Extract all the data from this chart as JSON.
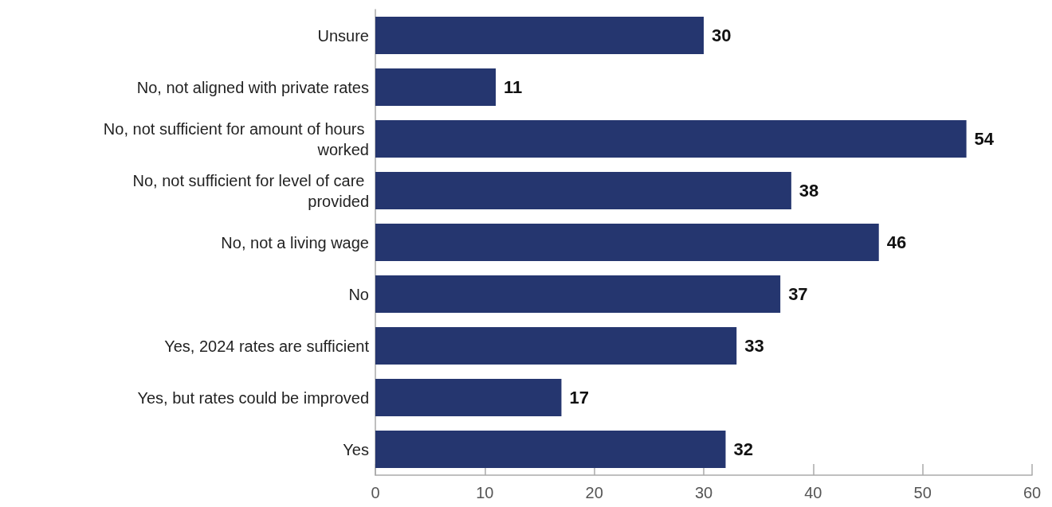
{
  "chart_data": {
    "type": "bar",
    "orientation": "horizontal",
    "categories": [
      "Unsure",
      "No, not aligned with private rates",
      "No, not sufficient for amount of hours worked",
      "No, not sufficient for level of care provided",
      "No, not a living wage",
      "No",
      "Yes, 2024 rates are sufficient",
      "Yes, but rates could be improved",
      "Yes"
    ],
    "values": [
      30,
      11,
      54,
      38,
      46,
      37,
      33,
      17,
      32
    ],
    "color": "#25366f",
    "xlim": [
      0,
      60
    ],
    "xticks": [
      0,
      10,
      20,
      30,
      40,
      50,
      60
    ],
    "grid": false,
    "data_labels": true
  }
}
